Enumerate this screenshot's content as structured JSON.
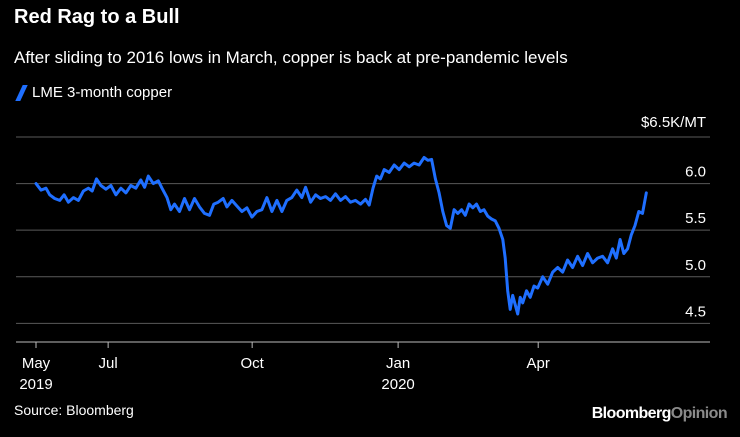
{
  "chart_data": {
    "type": "line",
    "title": "Red Rag to a Bull",
    "subtitle": "After sliding to 2016 lows in March, copper is back at pre-pandemic levels",
    "legend": "LME 3-month copper",
    "unit_label": "$6.5K/MT",
    "source": "Source: Bloomberg",
    "ylim": [
      4.3,
      6.5
    ],
    "xlim": [
      0,
      1
    ],
    "y_ticks": [
      {
        "value": 6.0,
        "label": "6.0"
      },
      {
        "value": 5.5,
        "label": "5.5"
      },
      {
        "value": 5.0,
        "label": "5.0"
      },
      {
        "value": 4.5,
        "label": "4.5"
      }
    ],
    "x_ticks": [
      {
        "pos": 0.0,
        "label": "May",
        "sublabel": "2019"
      },
      {
        "pos": 0.1156,
        "label": "Jul",
        "sublabel": ""
      },
      {
        "pos": 0.3464,
        "label": "Oct",
        "sublabel": ""
      },
      {
        "pos": 0.5803,
        "label": "Jan",
        "sublabel": "2020"
      },
      {
        "pos": 0.8048,
        "label": "Apr",
        "sublabel": ""
      }
    ],
    "grid": true,
    "legend_position": "top-left",
    "series": [
      {
        "name": "LME 3-month copper",
        "color": "#1f6fff",
        "points": [
          [
            0.0,
            6.0
          ],
          [
            0.008,
            5.93
          ],
          [
            0.016,
            5.95
          ],
          [
            0.022,
            5.88
          ],
          [
            0.03,
            5.84
          ],
          [
            0.038,
            5.82
          ],
          [
            0.045,
            5.88
          ],
          [
            0.052,
            5.8
          ],
          [
            0.06,
            5.85
          ],
          [
            0.068,
            5.82
          ],
          [
            0.076,
            5.92
          ],
          [
            0.084,
            5.95
          ],
          [
            0.09,
            5.92
          ],
          [
            0.097,
            6.05
          ],
          [
            0.104,
            5.98
          ],
          [
            0.112,
            5.94
          ],
          [
            0.12,
            5.98
          ],
          [
            0.128,
            5.88
          ],
          [
            0.136,
            5.95
          ],
          [
            0.144,
            5.9
          ],
          [
            0.152,
            5.98
          ],
          [
            0.16,
            5.95
          ],
          [
            0.168,
            6.04
          ],
          [
            0.174,
            5.96
          ],
          [
            0.18,
            6.08
          ],
          [
            0.188,
            6.0
          ],
          [
            0.196,
            6.03
          ],
          [
            0.202,
            5.95
          ],
          [
            0.21,
            5.85
          ],
          [
            0.216,
            5.72
          ],
          [
            0.222,
            5.78
          ],
          [
            0.23,
            5.7
          ],
          [
            0.238,
            5.84
          ],
          [
            0.246,
            5.72
          ],
          [
            0.254,
            5.84
          ],
          [
            0.262,
            5.75
          ],
          [
            0.27,
            5.68
          ],
          [
            0.278,
            5.66
          ],
          [
            0.285,
            5.78
          ],
          [
            0.292,
            5.8
          ],
          [
            0.3,
            5.84
          ],
          [
            0.306,
            5.75
          ],
          [
            0.314,
            5.82
          ],
          [
            0.322,
            5.76
          ],
          [
            0.33,
            5.7
          ],
          [
            0.338,
            5.74
          ],
          [
            0.346,
            5.64
          ],
          [
            0.354,
            5.7
          ],
          [
            0.362,
            5.72
          ],
          [
            0.37,
            5.85
          ],
          [
            0.378,
            5.7
          ],
          [
            0.386,
            5.82
          ],
          [
            0.394,
            5.7
          ],
          [
            0.402,
            5.82
          ],
          [
            0.41,
            5.85
          ],
          [
            0.418,
            5.93
          ],
          [
            0.426,
            5.85
          ],
          [
            0.432,
            5.96
          ],
          [
            0.44,
            5.8
          ],
          [
            0.448,
            5.88
          ],
          [
            0.456,
            5.84
          ],
          [
            0.464,
            5.86
          ],
          [
            0.472,
            5.82
          ],
          [
            0.48,
            5.89
          ],
          [
            0.488,
            5.82
          ],
          [
            0.496,
            5.86
          ],
          [
            0.504,
            5.8
          ],
          [
            0.512,
            5.82
          ],
          [
            0.52,
            5.78
          ],
          [
            0.528,
            5.83
          ],
          [
            0.534,
            5.77
          ],
          [
            0.54,
            5.95
          ],
          [
            0.546,
            6.08
          ],
          [
            0.552,
            6.05
          ],
          [
            0.558,
            6.15
          ],
          [
            0.566,
            6.12
          ],
          [
            0.574,
            6.2
          ],
          [
            0.582,
            6.15
          ],
          [
            0.59,
            6.22
          ],
          [
            0.598,
            6.18
          ],
          [
            0.606,
            6.22
          ],
          [
            0.614,
            6.2
          ],
          [
            0.622,
            6.28
          ],
          [
            0.628,
            6.25
          ],
          [
            0.634,
            6.26
          ],
          [
            0.64,
            6.05
          ],
          [
            0.646,
            5.9
          ],
          [
            0.652,
            5.7
          ],
          [
            0.658,
            5.55
          ],
          [
            0.664,
            5.52
          ],
          [
            0.67,
            5.72
          ],
          [
            0.676,
            5.68
          ],
          [
            0.682,
            5.72
          ],
          [
            0.688,
            5.66
          ],
          [
            0.694,
            5.78
          ],
          [
            0.7,
            5.74
          ],
          [
            0.706,
            5.78
          ],
          [
            0.712,
            5.7
          ],
          [
            0.718,
            5.72
          ],
          [
            0.724,
            5.65
          ],
          [
            0.73,
            5.62
          ],
          [
            0.736,
            5.6
          ],
          [
            0.742,
            5.52
          ],
          [
            0.748,
            5.4
          ],
          [
            0.752,
            5.2
          ],
          [
            0.756,
            4.85
          ],
          [
            0.76,
            4.65
          ],
          [
            0.764,
            4.8
          ],
          [
            0.768,
            4.7
          ],
          [
            0.772,
            4.6
          ],
          [
            0.776,
            4.78
          ],
          [
            0.78,
            4.72
          ],
          [
            0.786,
            4.85
          ],
          [
            0.792,
            4.78
          ],
          [
            0.798,
            4.9
          ],
          [
            0.804,
            4.88
          ],
          [
            0.812,
            5.0
          ],
          [
            0.82,
            4.92
          ],
          [
            0.828,
            5.05
          ],
          [
            0.836,
            5.1
          ],
          [
            0.844,
            5.05
          ],
          [
            0.852,
            5.18
          ],
          [
            0.86,
            5.1
          ],
          [
            0.868,
            5.22
          ],
          [
            0.876,
            5.12
          ],
          [
            0.884,
            5.25
          ],
          [
            0.892,
            5.15
          ],
          [
            0.9,
            5.2
          ],
          [
            0.908,
            5.22
          ],
          [
            0.916,
            5.15
          ],
          [
            0.924,
            5.3
          ],
          [
            0.93,
            5.2
          ],
          [
            0.936,
            5.4
          ],
          [
            0.942,
            5.25
          ],
          [
            0.948,
            5.3
          ],
          [
            0.954,
            5.45
          ],
          [
            0.96,
            5.55
          ],
          [
            0.966,
            5.7
          ],
          [
            0.972,
            5.68
          ],
          [
            0.978,
            5.9
          ]
        ]
      }
    ]
  },
  "brand": {
    "main": "Bloomberg",
    "suffix": "Opinion"
  }
}
